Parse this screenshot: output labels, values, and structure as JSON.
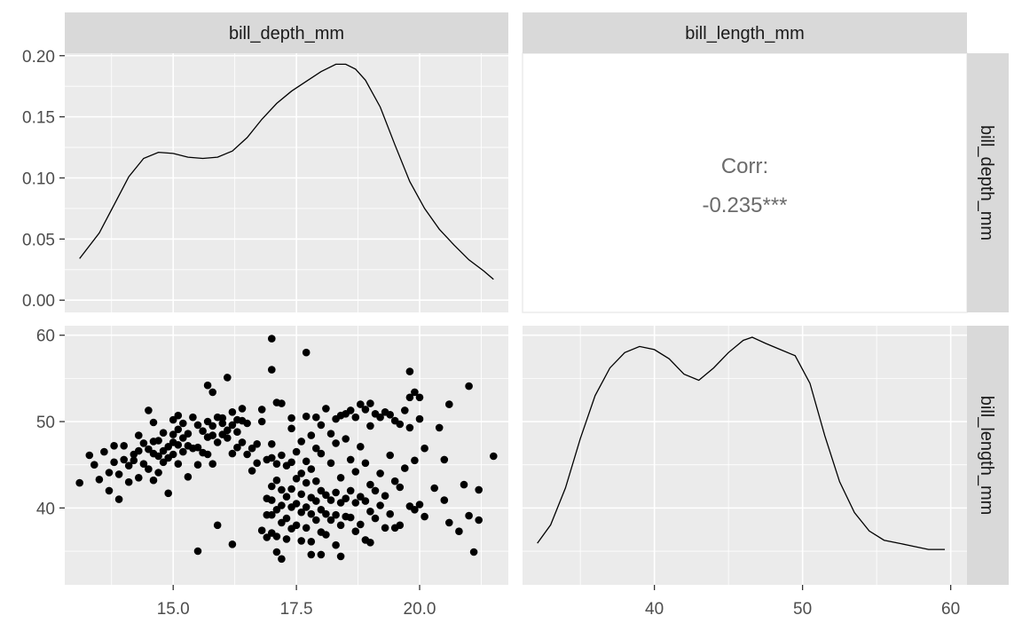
{
  "chart_data": {
    "type": "pairs",
    "variables": [
      "bill_depth_mm",
      "bill_length_mm"
    ],
    "strip_labels": {
      "columns": [
        "bill_depth_mm",
        "bill_length_mm"
      ],
      "rows": [
        "bill_depth_mm",
        "bill_length_mm"
      ]
    },
    "axes": {
      "bill_depth_mm": {
        "range": [
          12.8,
          21.8
        ],
        "ticks": [
          "15.0",
          "17.5",
          "20.0"
        ],
        "tick_values": [
          15,
          17.5,
          20
        ]
      },
      "bill_length_mm": {
        "range": [
          31.1,
          61.1
        ],
        "ticks": [
          "40",
          "50",
          "60"
        ],
        "tick_values": [
          40,
          50,
          60
        ]
      },
      "density_y": {
        "range": [
          -0.01,
          0.202
        ],
        "ticks": [
          "0.00",
          "0.05",
          "0.10",
          "0.15",
          "0.20"
        ],
        "tick_values": [
          0,
          0.05,
          0.1,
          0.15,
          0.2
        ]
      }
    },
    "correlation": {
      "label": "Corr:",
      "value": "-0.235***"
    },
    "density_bill_depth": {
      "x": [
        13.1,
        13.5,
        13.8,
        14.1,
        14.4,
        14.7,
        15.0,
        15.3,
        15.6,
        15.9,
        16.2,
        16.5,
        16.8,
        17.1,
        17.4,
        17.7,
        18.0,
        18.3,
        18.5,
        18.7,
        18.9,
        19.2,
        19.5,
        19.8,
        20.1,
        20.4,
        20.7,
        21.0,
        21.3,
        21.5
      ],
      "y": [
        0.034,
        0.055,
        0.078,
        0.101,
        0.116,
        0.121,
        0.12,
        0.117,
        0.116,
        0.117,
        0.122,
        0.133,
        0.148,
        0.161,
        0.171,
        0.179,
        0.187,
        0.193,
        0.193,
        0.189,
        0.18,
        0.158,
        0.127,
        0.097,
        0.075,
        0.058,
        0.045,
        0.033,
        0.024,
        0.017
      ]
    },
    "density_bill_length": {
      "x": [
        32.1,
        33.0,
        34.0,
        35.0,
        36.0,
        37.0,
        38.0,
        39.0,
        40.0,
        41.0,
        42.0,
        43.0,
        44.0,
        45.0,
        46.0,
        46.6,
        47.5,
        48.5,
        49.5,
        50.5,
        51.5,
        52.5,
        53.5,
        54.5,
        55.5,
        56.5,
        57.5,
        58.5,
        59.6
      ],
      "y": [
        0.004,
        0.01,
        0.022,
        0.038,
        0.052,
        0.061,
        0.066,
        0.068,
        0.067,
        0.064,
        0.059,
        0.057,
        0.061,
        0.066,
        0.07,
        0.071,
        0.069,
        0.067,
        0.065,
        0.056,
        0.039,
        0.024,
        0.014,
        0.008,
        0.005,
        0.004,
        0.003,
        0.002,
        0.002
      ]
    },
    "scatter_points": [
      [
        13.1,
        42.9
      ],
      [
        13.3,
        46.1
      ],
      [
        13.4,
        45.0
      ],
      [
        13.5,
        43.3
      ],
      [
        13.6,
        46.5
      ],
      [
        13.7,
        44.1
      ],
      [
        13.7,
        42.0
      ],
      [
        13.8,
        47.2
      ],
      [
        13.8,
        45.3
      ],
      [
        13.9,
        43.9
      ],
      [
        13.9,
        41.0
      ],
      [
        14.0,
        47.2
      ],
      [
        14.0,
        45.6
      ],
      [
        14.1,
        44.9
      ],
      [
        14.1,
        43.0
      ],
      [
        14.2,
        46.2
      ],
      [
        14.2,
        45.5
      ],
      [
        14.3,
        48.4
      ],
      [
        14.3,
        46.6
      ],
      [
        14.3,
        43.5
      ],
      [
        14.4,
        47.5
      ],
      [
        14.4,
        45.1
      ],
      [
        14.5,
        51.3
      ],
      [
        14.5,
        46.8
      ],
      [
        14.5,
        44.5
      ],
      [
        14.6,
        49.9
      ],
      [
        14.6,
        47.7
      ],
      [
        14.6,
        46.3
      ],
      [
        14.6,
        43.2
      ],
      [
        14.7,
        47.8
      ],
      [
        14.7,
        46.0
      ],
      [
        14.7,
        44.1
      ],
      [
        14.8,
        48.7
      ],
      [
        14.8,
        46.6
      ],
      [
        14.8,
        45.3
      ],
      [
        14.9,
        47.1
      ],
      [
        14.9,
        45.8
      ],
      [
        14.9,
        41.7
      ],
      [
        15.0,
        50.2
      ],
      [
        15.0,
        48.5
      ],
      [
        15.0,
        47.6
      ],
      [
        15.0,
        46.2
      ],
      [
        15.1,
        50.7
      ],
      [
        15.1,
        49.1
      ],
      [
        15.1,
        47.3
      ],
      [
        15.1,
        45.1
      ],
      [
        15.2,
        49.8
      ],
      [
        15.2,
        48.1
      ],
      [
        15.2,
        46.5
      ],
      [
        15.3,
        48.6
      ],
      [
        15.3,
        47.2
      ],
      [
        15.3,
        43.6
      ],
      [
        15.4,
        50.5
      ],
      [
        15.4,
        46.9
      ],
      [
        15.5,
        49.6
      ],
      [
        15.5,
        47.0
      ],
      [
        15.5,
        45.0
      ],
      [
        15.5,
        35.0
      ],
      [
        15.6,
        48.9
      ],
      [
        15.6,
        46.4
      ],
      [
        15.7,
        50.0
      ],
      [
        15.7,
        48.2
      ],
      [
        15.7,
        54.2
      ],
      [
        15.7,
        46.2
      ],
      [
        15.8,
        53.4
      ],
      [
        15.8,
        49.5
      ],
      [
        15.8,
        48.4
      ],
      [
        15.8,
        45.1
      ],
      [
        15.9,
        50.5
      ],
      [
        15.9,
        47.6
      ],
      [
        15.9,
        38.0
      ],
      [
        16.0,
        49.8
      ],
      [
        16.0,
        48.5
      ],
      [
        16.0,
        50.4
      ],
      [
        16.1,
        55.1
      ],
      [
        16.1,
        49.0
      ],
      [
        16.1,
        48.1
      ],
      [
        16.2,
        51.1
      ],
      [
        16.2,
        49.6
      ],
      [
        16.2,
        46.3
      ],
      [
        16.2,
        35.8
      ],
      [
        16.3,
        50.2
      ],
      [
        16.3,
        48.8
      ],
      [
        16.3,
        47.0
      ],
      [
        16.4,
        51.5
      ],
      [
        16.4,
        50.1
      ],
      [
        16.4,
        47.6
      ],
      [
        16.5,
        49.8
      ],
      [
        16.5,
        46.2
      ],
      [
        16.6,
        46.9
      ],
      [
        16.6,
        44.3
      ],
      [
        16.7,
        47.4
      ],
      [
        16.7,
        45.2
      ],
      [
        16.8,
        51.4
      ],
      [
        16.8,
        50.0
      ],
      [
        16.8,
        37.4
      ],
      [
        16.9,
        45.6
      ],
      [
        16.9,
        41.1
      ],
      [
        16.9,
        39.2
      ],
      [
        16.9,
        36.6
      ],
      [
        17.0,
        59.6
      ],
      [
        17.0,
        56.0
      ],
      [
        17.0,
        47.4
      ],
      [
        17.0,
        45.8
      ],
      [
        17.0,
        42.5
      ],
      [
        17.0,
        40.9
      ],
      [
        17.0,
        39.2
      ],
      [
        17.0,
        37.1
      ],
      [
        17.1,
        52.2
      ],
      [
        17.1,
        45.1
      ],
      [
        17.1,
        43.2
      ],
      [
        17.1,
        39.8
      ],
      [
        17.1,
        36.7
      ],
      [
        17.1,
        34.9
      ],
      [
        17.2,
        52.1
      ],
      [
        17.2,
        46.1
      ],
      [
        17.2,
        42.1
      ],
      [
        17.2,
        40.3
      ],
      [
        17.2,
        38.3
      ],
      [
        17.2,
        34.1
      ],
      [
        17.3,
        44.9
      ],
      [
        17.3,
        41.3
      ],
      [
        17.3,
        38.8
      ],
      [
        17.3,
        36.4
      ],
      [
        17.4,
        50.4
      ],
      [
        17.4,
        49.2
      ],
      [
        17.4,
        45.3
      ],
      [
        17.4,
        42.2
      ],
      [
        17.4,
        40.1
      ],
      [
        17.4,
        37.6
      ],
      [
        17.5,
        46.5
      ],
      [
        17.5,
        43.4
      ],
      [
        17.5,
        40.5
      ],
      [
        17.5,
        38.0
      ],
      [
        17.6,
        47.7
      ],
      [
        17.6,
        44.0
      ],
      [
        17.6,
        41.6
      ],
      [
        17.6,
        39.5
      ],
      [
        17.6,
        36.2
      ],
      [
        17.7,
        58.0
      ],
      [
        17.7,
        50.6
      ],
      [
        17.7,
        45.4
      ],
      [
        17.7,
        42.9
      ],
      [
        17.7,
        40.1
      ],
      [
        17.7,
        37.7
      ],
      [
        17.8,
        48.4
      ],
      [
        17.8,
        44.5
      ],
      [
        17.8,
        41.2
      ],
      [
        17.8,
        39.3
      ],
      [
        17.8,
        36.1
      ],
      [
        17.8,
        34.6
      ],
      [
        17.9,
        50.5
      ],
      [
        17.9,
        46.9
      ],
      [
        17.9,
        43.1
      ],
      [
        17.9,
        40.8
      ],
      [
        17.9,
        38.6
      ],
      [
        18.0,
        49.6
      ],
      [
        18.0,
        46.3
      ],
      [
        18.0,
        42.0
      ],
      [
        18.0,
        39.8
      ],
      [
        18.0,
        37.2
      ],
      [
        18.0,
        34.6
      ],
      [
        18.1,
        51.5
      ],
      [
        18.1,
        41.5
      ],
      [
        18.1,
        39.3
      ],
      [
        18.1,
        36.9
      ],
      [
        18.2,
        48.6
      ],
      [
        18.2,
        45.2
      ],
      [
        18.2,
        40.9
      ],
      [
        18.2,
        38.6
      ],
      [
        18.3,
        50.3
      ],
      [
        18.3,
        47.5
      ],
      [
        18.3,
        41.8
      ],
      [
        18.3,
        39.2
      ],
      [
        18.3,
        35.7
      ],
      [
        18.4,
        50.7
      ],
      [
        18.4,
        43.5
      ],
      [
        18.4,
        40.6
      ],
      [
        18.4,
        38.0
      ],
      [
        18.4,
        34.4
      ],
      [
        18.5,
        50.9
      ],
      [
        18.5,
        48.0
      ],
      [
        18.5,
        41.1
      ],
      [
        18.5,
        39.0
      ],
      [
        18.6,
        51.3
      ],
      [
        18.6,
        45.6
      ],
      [
        18.6,
        42.0
      ],
      [
        18.6,
        38.9
      ],
      [
        18.7,
        50.5
      ],
      [
        18.7,
        44.2
      ],
      [
        18.7,
        40.6
      ],
      [
        18.7,
        37.3
      ],
      [
        18.8,
        52.0
      ],
      [
        18.8,
        47.1
      ],
      [
        18.8,
        41.3
      ],
      [
        18.8,
        38.1
      ],
      [
        18.9,
        51.4
      ],
      [
        18.9,
        45.2
      ],
      [
        18.9,
        40.8
      ],
      [
        18.9,
        36.3
      ],
      [
        19.0,
        52.1
      ],
      [
        19.0,
        49.5
      ],
      [
        19.0,
        42.7
      ],
      [
        19.0,
        39.6
      ],
      [
        19.0,
        36.0
      ],
      [
        19.1,
        50.9
      ],
      [
        19.1,
        42.0
      ],
      [
        19.1,
        38.8
      ],
      [
        19.2,
        50.5
      ],
      [
        19.2,
        44.0
      ],
      [
        19.2,
        40.3
      ],
      [
        19.3,
        51.1
      ],
      [
        19.3,
        41.4
      ],
      [
        19.3,
        37.7
      ],
      [
        19.4,
        50.8
      ],
      [
        19.4,
        46.1
      ],
      [
        19.4,
        39.3
      ],
      [
        19.5,
        50.1
      ],
      [
        19.5,
        43.1
      ],
      [
        19.5,
        37.7
      ],
      [
        19.6,
        49.7
      ],
      [
        19.6,
        42.4
      ],
      [
        19.6,
        38.0
      ],
      [
        19.7,
        51.3
      ],
      [
        19.7,
        44.6
      ],
      [
        19.8,
        55.8
      ],
      [
        19.8,
        52.8
      ],
      [
        19.8,
        49.3
      ],
      [
        19.8,
        40.2
      ],
      [
        19.9,
        53.4
      ],
      [
        19.9,
        45.5
      ],
      [
        19.9,
        39.8
      ],
      [
        20.0,
        52.8
      ],
      [
        20.0,
        50.3
      ],
      [
        20.0,
        40.4
      ],
      [
        20.1,
        46.9
      ],
      [
        20.1,
        39.0
      ],
      [
        20.3,
        42.3
      ],
      [
        20.4,
        49.3
      ],
      [
        20.5,
        45.6
      ],
      [
        20.5,
        40.9
      ],
      [
        20.6,
        52.0
      ],
      [
        20.6,
        38.3
      ],
      [
        20.8,
        37.3
      ],
      [
        20.9,
        42.7
      ],
      [
        21.0,
        54.1
      ],
      [
        21.0,
        39.1
      ],
      [
        21.1,
        34.9
      ],
      [
        21.2,
        42.1
      ],
      [
        21.2,
        38.6
      ],
      [
        21.5,
        46.0
      ]
    ]
  }
}
